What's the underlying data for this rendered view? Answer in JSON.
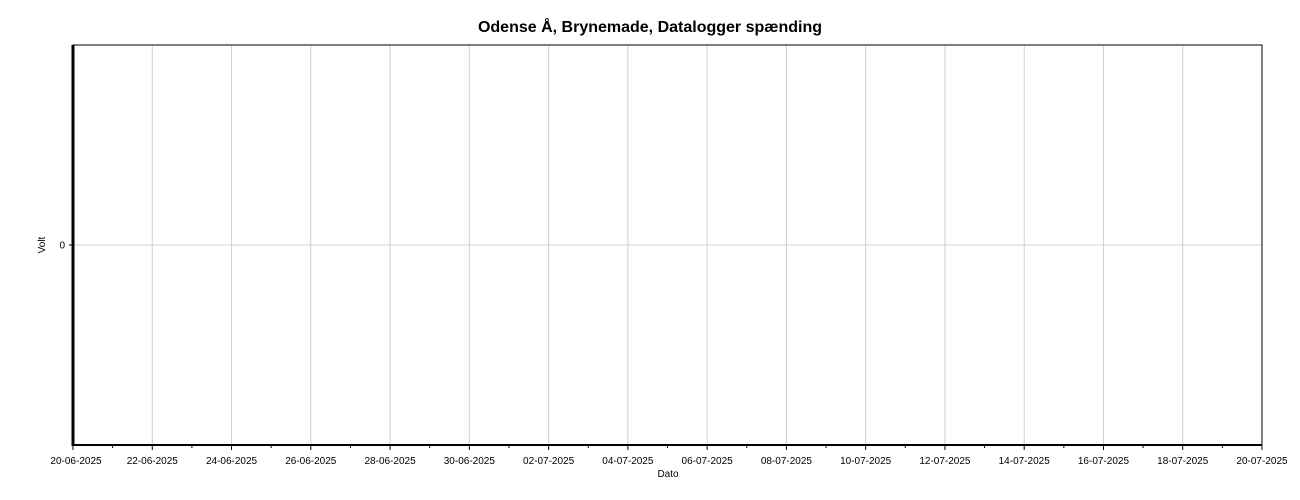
{
  "chart_data": {
    "type": "line",
    "title": "Odense Å, Brynemade, Datalogger spænding",
    "xlabel": "Dato",
    "ylabel": "Volt",
    "x_ticks": [
      "20-06-2025",
      "22-06-2025",
      "24-06-2025",
      "26-06-2025",
      "28-06-2025",
      "30-06-2025",
      "02-07-2025",
      "04-07-2025",
      "06-07-2025",
      "08-07-2025",
      "10-07-2025",
      "12-07-2025",
      "14-07-2025",
      "16-07-2025",
      "18-07-2025",
      "20-07-2025"
    ],
    "y_ticks": [
      "0"
    ],
    "xlim": [
      "20-06-2025",
      "20-07-2025"
    ],
    "ylim": [
      -1,
      1
    ],
    "series": [],
    "grid": true
  }
}
